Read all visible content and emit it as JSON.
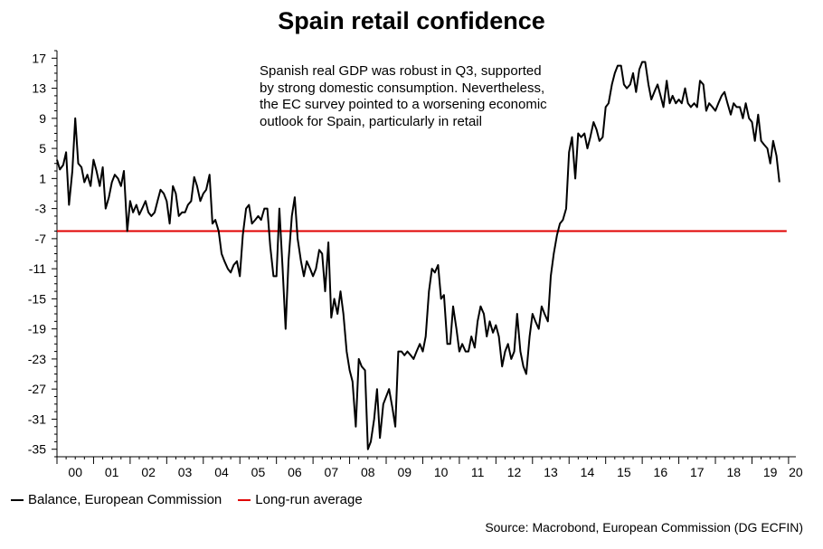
{
  "chart_data": {
    "type": "line",
    "title": "Spain retail confidence",
    "annotation": "Spanish real GDP was robust in Q3, supported by strong domestic consumption. Nevertheless, the EC survey pointed to a worsening economic outlook for Spain, particularly in retail",
    "x_ticks": [
      "00",
      "01",
      "02",
      "03",
      "04",
      "05",
      "06",
      "07",
      "08",
      "09",
      "10",
      "11",
      "12",
      "13",
      "14",
      "15",
      "16",
      "17",
      "18",
      "19",
      "20"
    ],
    "y_ticks": [
      17,
      13,
      9,
      5,
      1,
      -3,
      -7,
      -11,
      -15,
      -19,
      -23,
      -27,
      -31,
      -35
    ],
    "ylim": [
      -36,
      18
    ],
    "xlim": [
      2000,
      2020.2
    ],
    "grid": false,
    "legend_position": "bottom-left",
    "series": [
      {
        "name": "Balance, European Commission",
        "color": "#000000",
        "points": [
          [
            2000.0,
            3.5
          ],
          [
            2000.08,
            2.2
          ],
          [
            2000.17,
            2.8
          ],
          [
            2000.25,
            4.5
          ],
          [
            2000.33,
            -2.5
          ],
          [
            2000.42,
            2.0
          ],
          [
            2000.5,
            9.0
          ],
          [
            2000.58,
            3.0
          ],
          [
            2000.67,
            2.5
          ],
          [
            2000.75,
            0.5
          ],
          [
            2000.83,
            1.5
          ],
          [
            2000.92,
            0.0
          ],
          [
            2001.0,
            3.5
          ],
          [
            2001.08,
            2.0
          ],
          [
            2001.17,
            0.0
          ],
          [
            2001.25,
            2.5
          ],
          [
            2001.33,
            -3.0
          ],
          [
            2001.42,
            -1.5
          ],
          [
            2001.5,
            0.5
          ],
          [
            2001.58,
            1.5
          ],
          [
            2001.67,
            1.0
          ],
          [
            2001.75,
            0.0
          ],
          [
            2001.83,
            2.0
          ],
          [
            2001.92,
            -6.0
          ],
          [
            2002.0,
            -2.0
          ],
          [
            2002.08,
            -3.5
          ],
          [
            2002.17,
            -2.5
          ],
          [
            2002.25,
            -3.8
          ],
          [
            2002.33,
            -3.0
          ],
          [
            2002.42,
            -2.0
          ],
          [
            2002.5,
            -3.5
          ],
          [
            2002.58,
            -4.0
          ],
          [
            2002.67,
            -3.5
          ],
          [
            2002.75,
            -2.0
          ],
          [
            2002.83,
            -0.5
          ],
          [
            2002.92,
            -1.0
          ],
          [
            2003.0,
            -2.0
          ],
          [
            2003.08,
            -5.0
          ],
          [
            2003.17,
            0.0
          ],
          [
            2003.25,
            -1.0
          ],
          [
            2003.33,
            -4.0
          ],
          [
            2003.42,
            -3.5
          ],
          [
            2003.5,
            -3.5
          ],
          [
            2003.58,
            -2.5
          ],
          [
            2003.67,
            -2.0
          ],
          [
            2003.75,
            1.2
          ],
          [
            2003.83,
            0.0
          ],
          [
            2003.92,
            -2.0
          ],
          [
            2004.0,
            -1.0
          ],
          [
            2004.08,
            -0.5
          ],
          [
            2004.17,
            1.5
          ],
          [
            2004.25,
            -5.0
          ],
          [
            2004.33,
            -4.5
          ],
          [
            2004.42,
            -6.0
          ],
          [
            2004.5,
            -9.0
          ],
          [
            2004.58,
            -10.0
          ],
          [
            2004.67,
            -11.0
          ],
          [
            2004.75,
            -11.5
          ],
          [
            2004.83,
            -10.5
          ],
          [
            2004.92,
            -10.0
          ],
          [
            2005.0,
            -12.0
          ],
          [
            2005.08,
            -6.5
          ],
          [
            2005.17,
            -3.0
          ],
          [
            2005.25,
            -2.5
          ],
          [
            2005.33,
            -5.0
          ],
          [
            2005.42,
            -4.5
          ],
          [
            2005.5,
            -4.0
          ],
          [
            2005.58,
            -4.5
          ],
          [
            2005.67,
            -3.0
          ],
          [
            2005.75,
            -3.0
          ],
          [
            2005.83,
            -8.0
          ],
          [
            2005.92,
            -12.0
          ],
          [
            2006.0,
            -12.0
          ],
          [
            2006.08,
            -3.0
          ],
          [
            2006.17,
            -11.0
          ],
          [
            2006.25,
            -19.0
          ],
          [
            2006.33,
            -10.0
          ],
          [
            2006.42,
            -4.0
          ],
          [
            2006.5,
            -1.5
          ],
          [
            2006.58,
            -7.0
          ],
          [
            2006.67,
            -10.0
          ],
          [
            2006.75,
            -12.0
          ],
          [
            2006.83,
            -10.0
          ],
          [
            2006.92,
            -11.0
          ],
          [
            2007.0,
            -12.0
          ],
          [
            2007.08,
            -11.0
          ],
          [
            2007.17,
            -8.5
          ],
          [
            2007.25,
            -9.0
          ],
          [
            2007.33,
            -14.0
          ],
          [
            2007.42,
            -7.5
          ],
          [
            2007.5,
            -17.5
          ],
          [
            2007.58,
            -15.0
          ],
          [
            2007.67,
            -17.0
          ],
          [
            2007.75,
            -14.0
          ],
          [
            2007.83,
            -17.0
          ],
          [
            2007.92,
            -22.0
          ],
          [
            2008.0,
            -24.5
          ],
          [
            2008.08,
            -26.0
          ],
          [
            2008.17,
            -32.0
          ],
          [
            2008.25,
            -23.0
          ],
          [
            2008.33,
            -24.0
          ],
          [
            2008.42,
            -24.5
          ],
          [
            2008.5,
            -35.0
          ],
          [
            2008.58,
            -34.0
          ],
          [
            2008.67,
            -31.0
          ],
          [
            2008.75,
            -27.0
          ],
          [
            2008.83,
            -33.5
          ],
          [
            2008.92,
            -29.0
          ],
          [
            2009.0,
            -28.0
          ],
          [
            2009.08,
            -27.0
          ],
          [
            2009.17,
            -29.5
          ],
          [
            2009.25,
            -32.0
          ],
          [
            2009.33,
            -22.0
          ],
          [
            2009.42,
            -22.0
          ],
          [
            2009.5,
            -22.5
          ],
          [
            2009.58,
            -22.0
          ],
          [
            2009.67,
            -22.5
          ],
          [
            2009.75,
            -23.0
          ],
          [
            2009.83,
            -22.0
          ],
          [
            2009.92,
            -21.0
          ],
          [
            2010.0,
            -22.0
          ],
          [
            2010.08,
            -20.0
          ],
          [
            2010.17,
            -14.0
          ],
          [
            2010.25,
            -11.0
          ],
          [
            2010.33,
            -11.5
          ],
          [
            2010.42,
            -10.5
          ],
          [
            2010.5,
            -15.0
          ],
          [
            2010.58,
            -14.5
          ],
          [
            2010.67,
            -21.0
          ],
          [
            2010.75,
            -21.0
          ],
          [
            2010.83,
            -16.0
          ],
          [
            2010.92,
            -19.0
          ],
          [
            2011.0,
            -22.0
          ],
          [
            2011.08,
            -21.0
          ],
          [
            2011.17,
            -22.0
          ],
          [
            2011.25,
            -22.0
          ],
          [
            2011.33,
            -20.0
          ],
          [
            2011.42,
            -21.5
          ],
          [
            2011.5,
            -18.0
          ],
          [
            2011.58,
            -16.0
          ],
          [
            2011.67,
            -17.0
          ],
          [
            2011.75,
            -20.0
          ],
          [
            2011.83,
            -18.0
          ],
          [
            2011.92,
            -19.5
          ],
          [
            2012.0,
            -18.5
          ],
          [
            2012.08,
            -20.0
          ],
          [
            2012.17,
            -24.0
          ],
          [
            2012.25,
            -22.0
          ],
          [
            2012.33,
            -21.0
          ],
          [
            2012.42,
            -23.0
          ],
          [
            2012.5,
            -22.0
          ],
          [
            2012.58,
            -17.0
          ],
          [
            2012.67,
            -22.0
          ],
          [
            2012.75,
            -24.0
          ],
          [
            2012.83,
            -25.0
          ],
          [
            2012.92,
            -20.0
          ],
          [
            2013.0,
            -17.0
          ],
          [
            2013.08,
            -18.0
          ],
          [
            2013.17,
            -19.0
          ],
          [
            2013.25,
            -16.0
          ],
          [
            2013.33,
            -17.0
          ],
          [
            2013.42,
            -18.0
          ],
          [
            2013.5,
            -12.0
          ],
          [
            2013.58,
            -9.0
          ],
          [
            2013.67,
            -6.5
          ],
          [
            2013.75,
            -5.0
          ],
          [
            2013.83,
            -4.5
          ],
          [
            2013.92,
            -3.0
          ],
          [
            2014.0,
            4.5
          ],
          [
            2014.08,
            6.5
          ],
          [
            2014.17,
            1.0
          ],
          [
            2014.25,
            7.0
          ],
          [
            2014.33,
            6.5
          ],
          [
            2014.42,
            7.0
          ],
          [
            2014.5,
            5.0
          ],
          [
            2014.58,
            6.5
          ],
          [
            2014.67,
            8.5
          ],
          [
            2014.75,
            7.5
          ],
          [
            2014.83,
            6.0
          ],
          [
            2014.92,
            6.5
          ],
          [
            2015.0,
            10.5
          ],
          [
            2015.08,
            11.0
          ],
          [
            2015.17,
            13.5
          ],
          [
            2015.25,
            15.0
          ],
          [
            2015.33,
            16.0
          ],
          [
            2015.42,
            16.0
          ],
          [
            2015.5,
            13.5
          ],
          [
            2015.58,
            13.0
          ],
          [
            2015.67,
            13.5
          ],
          [
            2015.75,
            15.0
          ],
          [
            2015.83,
            12.5
          ],
          [
            2015.92,
            15.5
          ],
          [
            2016.0,
            16.5
          ],
          [
            2016.08,
            16.5
          ],
          [
            2016.17,
            13.5
          ],
          [
            2016.25,
            11.5
          ],
          [
            2016.33,
            12.5
          ],
          [
            2016.42,
            13.5
          ],
          [
            2016.5,
            12.0
          ],
          [
            2016.58,
            10.5
          ],
          [
            2016.67,
            14.0
          ],
          [
            2016.75,
            11.0
          ],
          [
            2016.83,
            12.0
          ],
          [
            2016.92,
            11.0
          ],
          [
            2017.0,
            11.5
          ],
          [
            2017.08,
            11.0
          ],
          [
            2017.17,
            13.0
          ],
          [
            2017.25,
            11.0
          ],
          [
            2017.33,
            10.5
          ],
          [
            2017.42,
            11.0
          ],
          [
            2017.5,
            10.5
          ],
          [
            2017.58,
            14.0
          ],
          [
            2017.67,
            13.5
          ],
          [
            2017.75,
            10.0
          ],
          [
            2017.83,
            11.0
          ],
          [
            2017.92,
            10.5
          ],
          [
            2018.0,
            10.0
          ],
          [
            2018.08,
            11.0
          ],
          [
            2018.17,
            12.0
          ],
          [
            2018.25,
            12.5
          ],
          [
            2018.33,
            11.0
          ],
          [
            2018.42,
            9.5
          ],
          [
            2018.5,
            11.0
          ],
          [
            2018.58,
            10.5
          ],
          [
            2018.67,
            10.5
          ],
          [
            2018.75,
            9.0
          ],
          [
            2018.83,
            11.0
          ],
          [
            2018.92,
            9.0
          ],
          [
            2019.0,
            8.5
          ],
          [
            2019.08,
            6.0
          ],
          [
            2019.17,
            9.5
          ],
          [
            2019.25,
            6.0
          ],
          [
            2019.33,
            5.5
          ],
          [
            2019.42,
            5.0
          ],
          [
            2019.5,
            3.0
          ],
          [
            2019.58,
            6.0
          ],
          [
            2019.67,
            4.0
          ],
          [
            2019.75,
            0.5
          ]
        ]
      },
      {
        "name": "Long-run average",
        "color": "#e00000",
        "constant": -6.0
      }
    ],
    "legend": [
      "Balance, European Commission",
      "Long-run average"
    ]
  },
  "source": "Source: Macrobond, European Commission (DG ECFIN)"
}
